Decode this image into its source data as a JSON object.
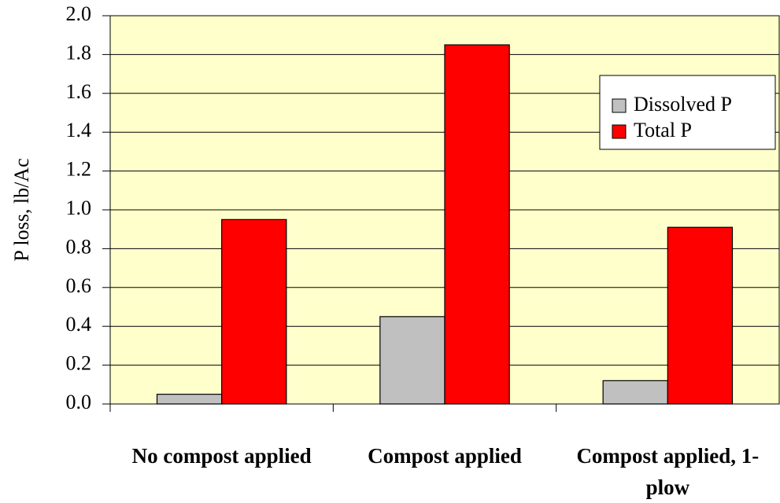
{
  "chart_data": {
    "type": "bar",
    "ylabel": "P loss, lb/Ac",
    "categories": [
      "No compost applied",
      "Compost applied",
      "Compost applied, 1-plow"
    ],
    "series": [
      {
        "name": "Dissolved P",
        "color": "#c0c0c0",
        "values": [
          0.05,
          0.45,
          0.12
        ]
      },
      {
        "name": "Total P",
        "color": "#ff0000",
        "values": [
          0.95,
          1.85,
          0.91
        ]
      }
    ],
    "ylim": [
      0,
      2
    ],
    "yticks": [
      {
        "value": 0,
        "label": "0.0"
      },
      0.2,
      0.4,
      0.6,
      0.8,
      {
        "value": 1,
        "label": "1.0"
      },
      1.2,
      1.4,
      1.6,
      1.8,
      {
        "value": 2,
        "label": "2.0"
      }
    ],
    "grid": true,
    "legend": "upper right",
    "plot_background": "#ffffcc"
  }
}
